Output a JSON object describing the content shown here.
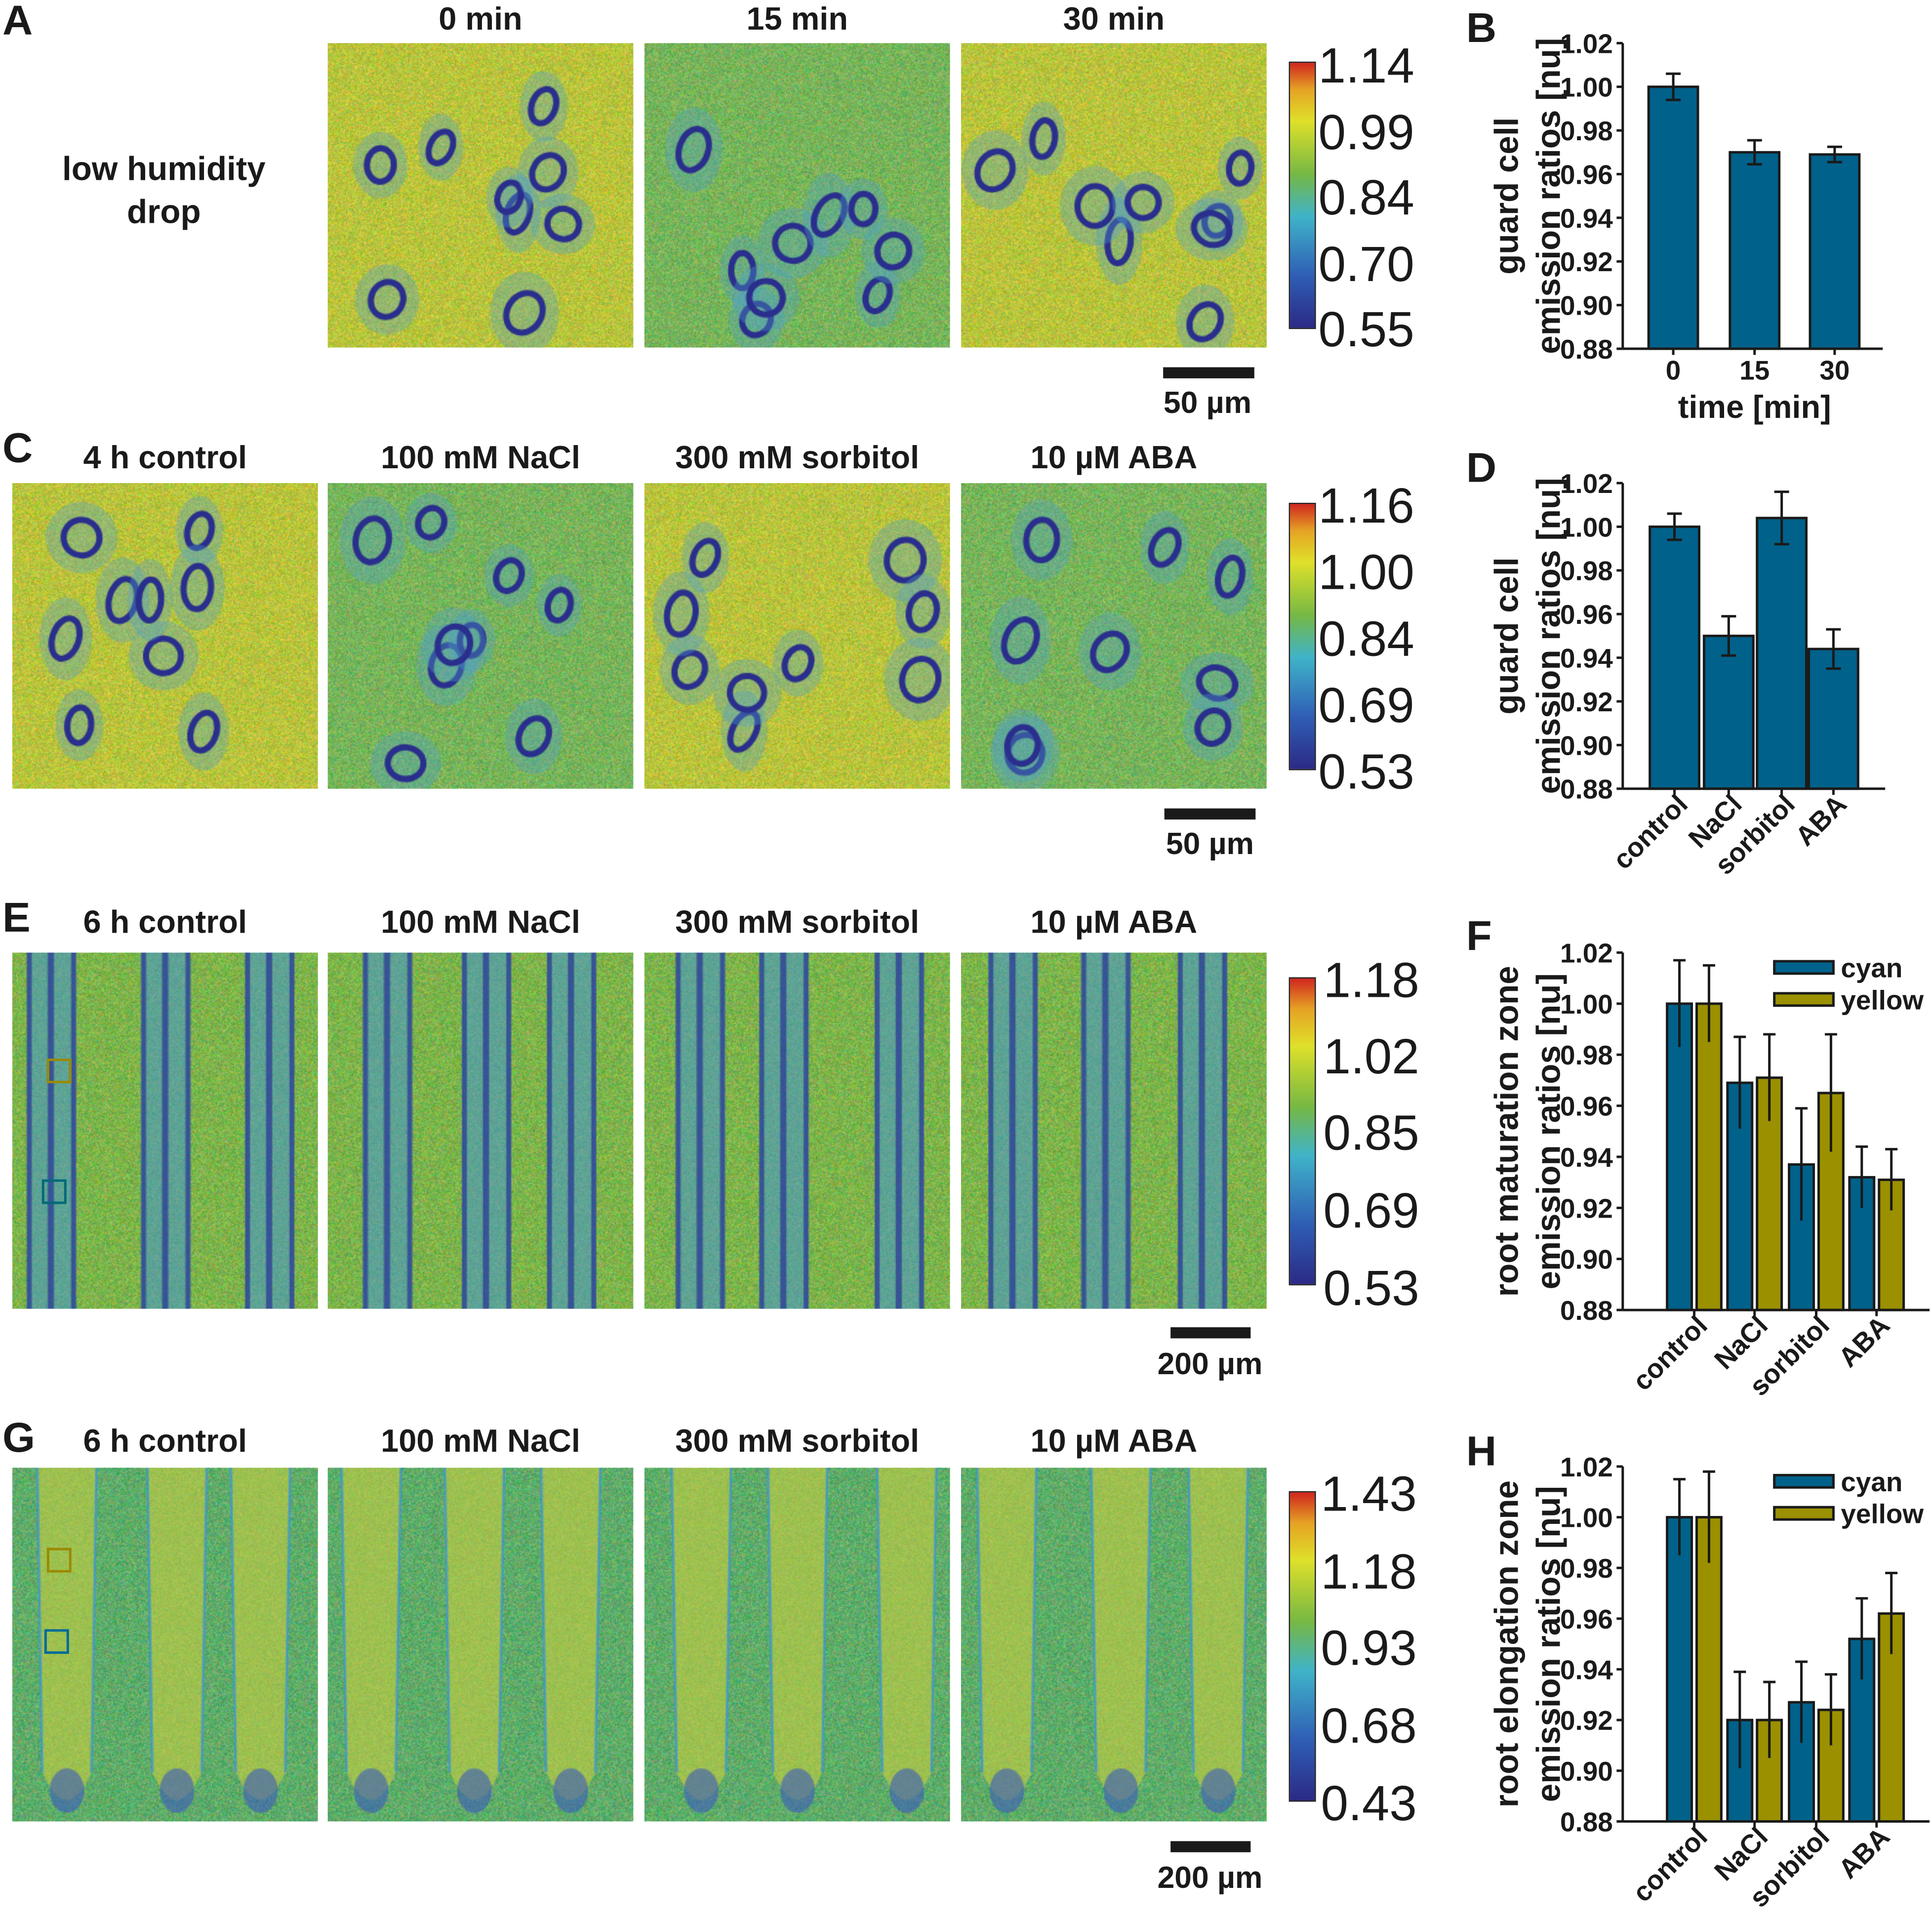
{
  "panels": {
    "A": {
      "label": "A",
      "side_label": [
        "low humidity",
        "drop"
      ],
      "titles": [
        "0 min",
        "15 min",
        "30 min"
      ],
      "colorbar": [
        "1.14",
        "0.99",
        "0.84",
        "0.70",
        "0.55"
      ],
      "scale": "50 µm"
    },
    "C": {
      "label": "C",
      "titles": [
        "4 h control",
        "100 mM NaCl",
        "300 mM sorbitol",
        "10 µM ABA"
      ],
      "colorbar": [
        "1.16",
        "1.00",
        "0.84",
        "0.69",
        "0.53"
      ],
      "scale": "50 µm"
    },
    "E": {
      "label": "E",
      "titles": [
        "6 h control",
        "100 mM NaCl",
        "300 mM sorbitol",
        "10 µM ABA"
      ],
      "colorbar": [
        "1.18",
        "1.02",
        "0.85",
        "0.69",
        "0.53"
      ],
      "scale": "200 µm"
    },
    "G": {
      "label": "G",
      "titles": [
        "6 h control",
        "100 mM NaCl",
        "300 mM sorbitol",
        "10 µM ABA"
      ],
      "colorbar": [
        "1.43",
        "1.18",
        "0.93",
        "0.68",
        "0.43"
      ],
      "scale": "200 µm"
    }
  },
  "colors": {
    "cyan": "#00618a",
    "yellow": "#9a9000",
    "axis": "#1a1a1a"
  },
  "chart_data": [
    {
      "panel": "B",
      "type": "bar",
      "categories": [
        "0",
        "15",
        "30"
      ],
      "ylabel": [
        "guard cell",
        "emission ratios [nu]"
      ],
      "xlabel": "time [min]",
      "ylim": [
        0.88,
        1.02
      ],
      "yticks": [
        "0.88",
        "0.90",
        "0.92",
        "0.94",
        "0.96",
        "0.98",
        "1.00",
        "1.02"
      ],
      "series": [
        {
          "values": [
            1.0,
            0.97,
            0.969
          ],
          "errors": [
            0.006,
            0.0055,
            0.0035
          ]
        }
      ]
    },
    {
      "panel": "D",
      "type": "bar",
      "categories": [
        "control",
        "NaCl",
        "sorbitol",
        "ABA"
      ],
      "ylabel": [
        "guard cell",
        "emission ratios [nu]"
      ],
      "xlabel": "",
      "ylim": [
        0.88,
        1.02
      ],
      "yticks": [
        "0.88",
        "0.90",
        "0.92",
        "0.94",
        "0.96",
        "0.98",
        "1.00",
        "1.02"
      ],
      "series": [
        {
          "values": [
            1.0,
            0.95,
            1.004,
            0.944
          ],
          "errors": [
            0.006,
            0.009,
            0.012,
            0.009
          ]
        }
      ]
    },
    {
      "panel": "F",
      "type": "bar",
      "categories": [
        "control",
        "NaCl",
        "sorbitol",
        "ABA"
      ],
      "ylabel": [
        "root maturation zone",
        "emission ratios [nu]"
      ],
      "xlabel": "",
      "ylim": [
        0.88,
        1.02
      ],
      "yticks": [
        "0.88",
        "0.90",
        "0.92",
        "0.94",
        "0.96",
        "0.98",
        "1.00",
        "1.02"
      ],
      "legend": "top-right",
      "series": [
        {
          "name": "cyan",
          "values": [
            1.0,
            0.969,
            0.937,
            0.932
          ],
          "errors": [
            0.017,
            0.018,
            0.022,
            0.012
          ]
        },
        {
          "name": "yellow",
          "values": [
            1.0,
            0.971,
            0.965,
            0.931
          ],
          "errors": [
            0.015,
            0.017,
            0.023,
            0.012
          ]
        }
      ]
    },
    {
      "panel": "H",
      "type": "bar",
      "categories": [
        "control",
        "NaCl",
        "sorbitol",
        "ABA"
      ],
      "ylabel": [
        "root elongation zone",
        "emission ratios [nu]"
      ],
      "xlabel": "",
      "ylim": [
        0.88,
        1.02
      ],
      "yticks": [
        "0.88",
        "0.90",
        "0.92",
        "0.94",
        "0.96",
        "0.98",
        "1.00",
        "1.02"
      ],
      "legend": "top-right",
      "series": [
        {
          "name": "cyan",
          "values": [
            1.0,
            0.92,
            0.927,
            0.952
          ],
          "errors": [
            0.015,
            0.019,
            0.016,
            0.016
          ]
        },
        {
          "name": "yellow",
          "values": [
            1.0,
            0.92,
            0.924,
            0.962
          ],
          "errors": [
            0.018,
            0.015,
            0.014,
            0.016
          ]
        }
      ]
    }
  ]
}
